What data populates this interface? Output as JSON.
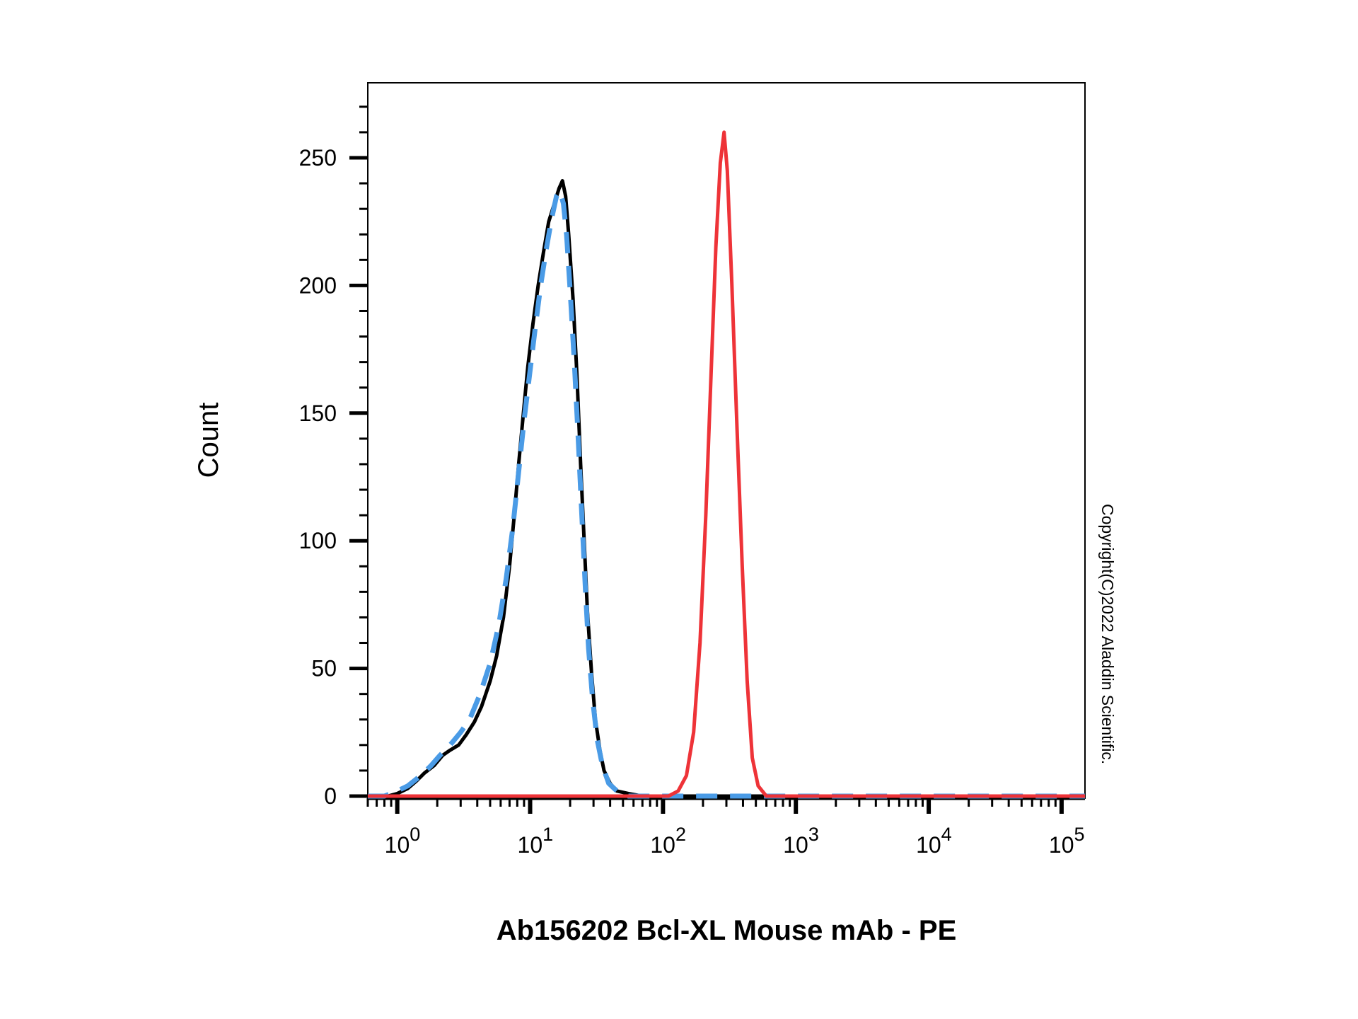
{
  "chart_data": {
    "type": "line",
    "title": "",
    "xlabel": "Ab156202 Bcl-XL Mouse mAb - PE",
    "ylabel": "Count",
    "x_scale": "log",
    "xlim": [
      0.6,
      150000
    ],
    "ylim": [
      0,
      275
    ],
    "x_ticks": [
      {
        "value": 1,
        "base": "10",
        "exp": "0"
      },
      {
        "value": 10,
        "base": "10",
        "exp": "1"
      },
      {
        "value": 100,
        "base": "10",
        "exp": "2"
      },
      {
        "value": 1000,
        "base": "10",
        "exp": "3"
      },
      {
        "value": 10000,
        "base": "10",
        "exp": "4"
      },
      {
        "value": 100000,
        "base": "10",
        "exp": "5"
      }
    ],
    "y_ticks": [
      0,
      50,
      100,
      150,
      200,
      250
    ],
    "grid": false,
    "legend": "none",
    "series": [
      {
        "color": "#000000",
        "style": "solid",
        "points": [
          [
            0.6,
            0
          ],
          [
            0.85,
            0
          ],
          [
            1.0,
            1
          ],
          [
            1.2,
            3
          ],
          [
            1.4,
            6
          ],
          [
            1.6,
            9
          ],
          [
            1.9,
            12
          ],
          [
            2.2,
            16
          ],
          [
            2.5,
            18
          ],
          [
            2.9,
            20
          ],
          [
            3.3,
            24
          ],
          [
            3.8,
            29
          ],
          [
            4.3,
            35
          ],
          [
            5.0,
            45
          ],
          [
            5.6,
            55
          ],
          [
            6.3,
            70
          ],
          [
            7.0,
            90
          ],
          [
            7.6,
            110
          ],
          [
            8.2,
            130
          ],
          [
            8.9,
            150
          ],
          [
            9.6,
            168
          ],
          [
            10.5,
            185
          ],
          [
            11.5,
            200
          ],
          [
            12.6,
            213
          ],
          [
            13.8,
            225
          ],
          [
            15.2,
            232
          ],
          [
            16.5,
            238
          ],
          [
            17.5,
            241
          ],
          [
            18.5,
            235
          ],
          [
            19.5,
            220
          ],
          [
            21.0,
            195
          ],
          [
            22.5,
            165
          ],
          [
            24.0,
            130
          ],
          [
            25.5,
            100
          ],
          [
            27.0,
            72
          ],
          [
            29.0,
            48
          ],
          [
            31.0,
            30
          ],
          [
            33.5,
            18
          ],
          [
            36.0,
            10
          ],
          [
            40.0,
            5
          ],
          [
            45.0,
            2
          ],
          [
            55.0,
            1
          ],
          [
            70.0,
            0
          ],
          [
            150000,
            0
          ]
        ]
      },
      {
        "color": "#4a9be6",
        "style": "dashed",
        "points": [
          [
            0.6,
            0
          ],
          [
            0.8,
            0
          ],
          [
            1.0,
            2
          ],
          [
            1.2,
            4
          ],
          [
            1.5,
            8
          ],
          [
            1.8,
            12
          ],
          [
            2.1,
            16
          ],
          [
            2.5,
            20
          ],
          [
            3.0,
            25
          ],
          [
            3.5,
            30
          ],
          [
            4.2,
            40
          ],
          [
            5.0,
            52
          ],
          [
            5.8,
            67
          ],
          [
            6.6,
            85
          ],
          [
            7.4,
            105
          ],
          [
            8.2,
            127
          ],
          [
            9.0,
            147
          ],
          [
            9.9,
            165
          ],
          [
            10.9,
            183
          ],
          [
            12.0,
            200
          ],
          [
            13.2,
            214
          ],
          [
            14.5,
            226
          ],
          [
            15.8,
            235
          ],
          [
            16.8,
            237
          ],
          [
            17.8,
            232
          ],
          [
            18.8,
            220
          ],
          [
            20.0,
            198
          ],
          [
            21.5,
            170
          ],
          [
            23.0,
            140
          ],
          [
            24.5,
            110
          ],
          [
            26.0,
            82
          ],
          [
            27.5,
            58
          ],
          [
            29.5,
            38
          ],
          [
            32.0,
            22
          ],
          [
            35.0,
            12
          ],
          [
            39.0,
            5
          ],
          [
            45.0,
            2
          ],
          [
            55.0,
            0
          ],
          [
            150000,
            0
          ]
        ]
      },
      {
        "color": "#ee3338",
        "style": "solid",
        "points": [
          [
            0.6,
            0
          ],
          [
            110,
            0
          ],
          [
            130,
            2
          ],
          [
            150,
            8
          ],
          [
            170,
            25
          ],
          [
            190,
            60
          ],
          [
            210,
            110
          ],
          [
            230,
            165
          ],
          [
            250,
            215
          ],
          [
            270,
            248
          ],
          [
            288,
            260
          ],
          [
            305,
            245
          ],
          [
            330,
            200
          ],
          [
            360,
            145
          ],
          [
            395,
            90
          ],
          [
            430,
            45
          ],
          [
            470,
            15
          ],
          [
            520,
            4
          ],
          [
            600,
            0
          ],
          [
            150000,
            0
          ]
        ]
      }
    ]
  },
  "copyright": "Copyright(C)2022 Aladdin Scientific."
}
